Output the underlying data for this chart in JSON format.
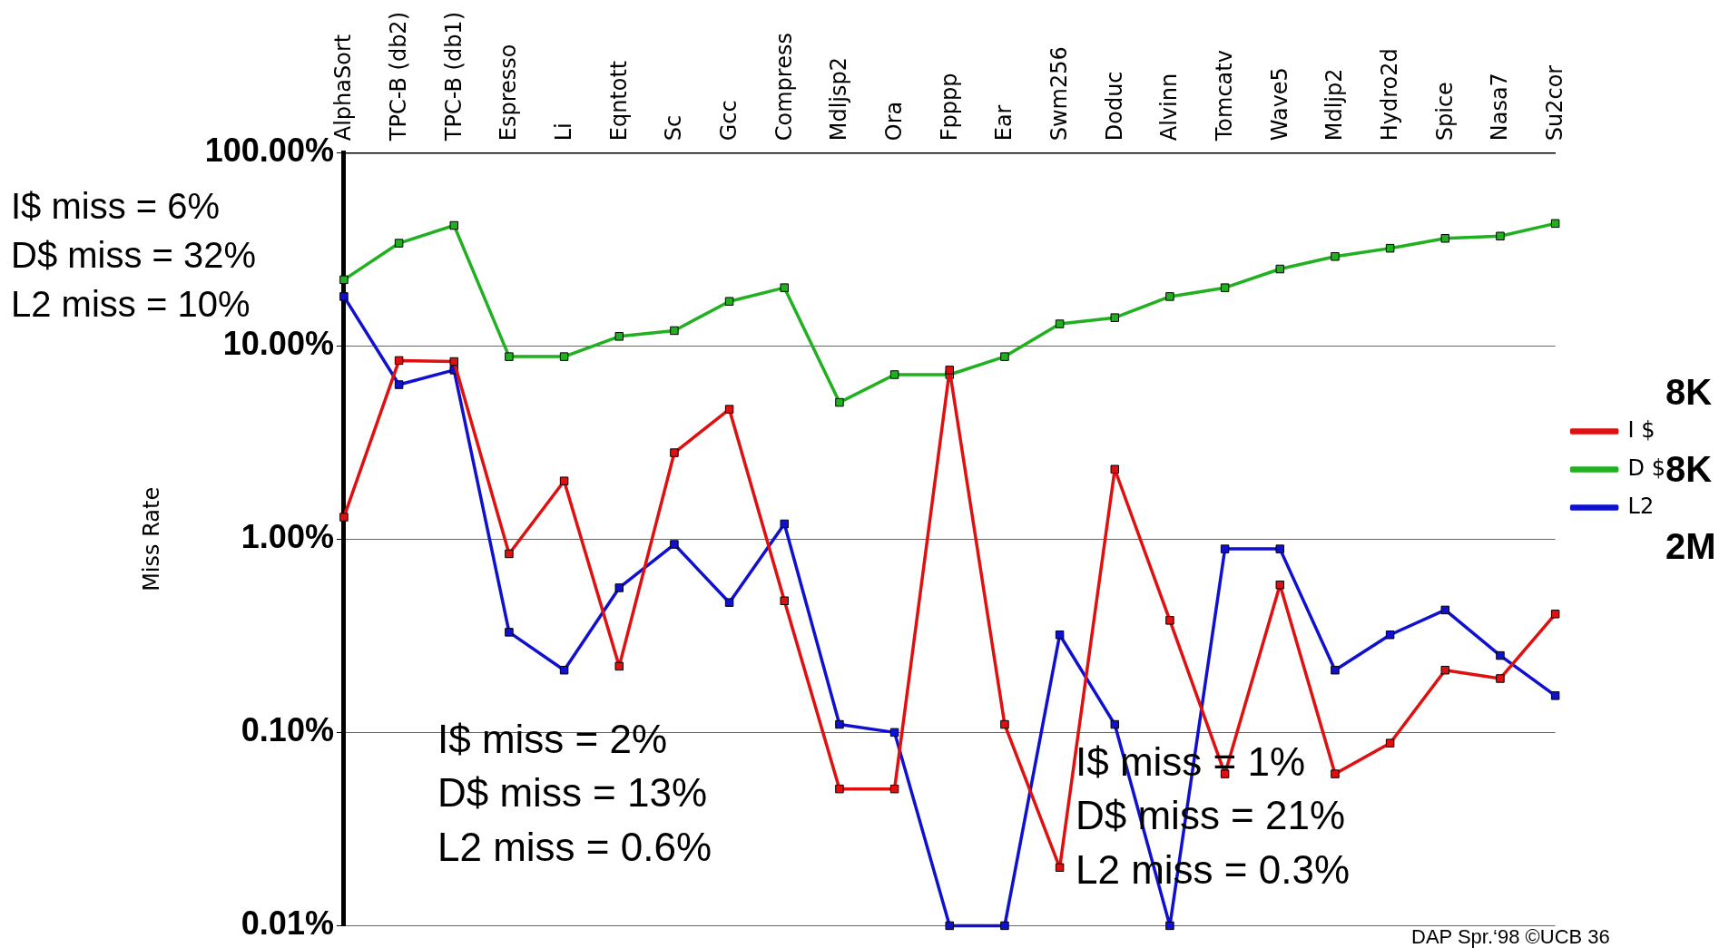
{
  "chart_data": {
    "type": "line",
    "ylabel": "Miss Rate",
    "categories": [
      "AlphaSort",
      "TPC-B (db2)",
      "TPC-B (db1)",
      "Espresso",
      "Li",
      "Eqntott",
      "Sc",
      "Gcc",
      "Compress",
      "Mdljsp2",
      "Ora",
      "Fpppp",
      "Ear",
      "Swm256",
      "Doduc",
      "Alvinn",
      "Tomcatv",
      "Wave5",
      "Mdljp2",
      "Hydro2d",
      "Spice",
      "Nasa7",
      "Su2cor"
    ],
    "series": [
      {
        "name": "I $",
        "color": "#e01010",
        "values": [
          1.3,
          8.4,
          8.3,
          0.84,
          2.0,
          0.22,
          2.8,
          4.7,
          0.48,
          0.051,
          0.051,
          7.5,
          0.11,
          0.02,
          2.3,
          0.38,
          0.061,
          0.58,
          0.061,
          0.088,
          0.21,
          0.19,
          0.41
        ]
      },
      {
        "name": "D $",
        "color": "#20b020",
        "values": [
          22,
          34,
          42,
          8.8,
          8.8,
          11.2,
          12,
          17,
          20,
          5.1,
          7.1,
          7.1,
          8.8,
          13,
          14,
          18,
          20,
          25,
          29,
          32,
          36,
          37,
          43
        ]
      },
      {
        "name": "L2",
        "color": "#1010d0",
        "values": [
          18,
          6.3,
          7.5,
          0.33,
          0.21,
          0.56,
          0.94,
          0.47,
          1.2,
          0.11,
          0.1,
          0.01,
          0.01,
          0.32,
          0.11,
          0.01,
          0.89,
          0.89,
          0.21,
          0.32,
          0.43,
          0.25,
          0.155
        ]
      }
    ],
    "log": true,
    "ylim": [
      0.01,
      100
    ],
    "yticks": [
      {
        "value": 0.01,
        "label": "0.01%"
      },
      {
        "value": 0.1,
        "label": "0.10%"
      },
      {
        "value": 1,
        "label": "1.00%"
      },
      {
        "value": 10,
        "label": "10.00%"
      },
      {
        "value": 100,
        "label": "100.00%"
      }
    ],
    "grid": "y",
    "legend": "right",
    "marker": "square",
    "line_style": "solid",
    "annotations": [
      "I$ miss = 6%\nD$ miss = 32%\nL2 miss = 10%",
      "I$ miss = 2%\nD$ miss = 13%\nL2 miss = 0.6%",
      "I$ miss = 1%\nD$ miss = 21%\nL2 miss = 0.3%",
      "8K",
      "8K",
      "2M",
      "DAP Spr.‘98 ©UCB 36"
    ]
  }
}
